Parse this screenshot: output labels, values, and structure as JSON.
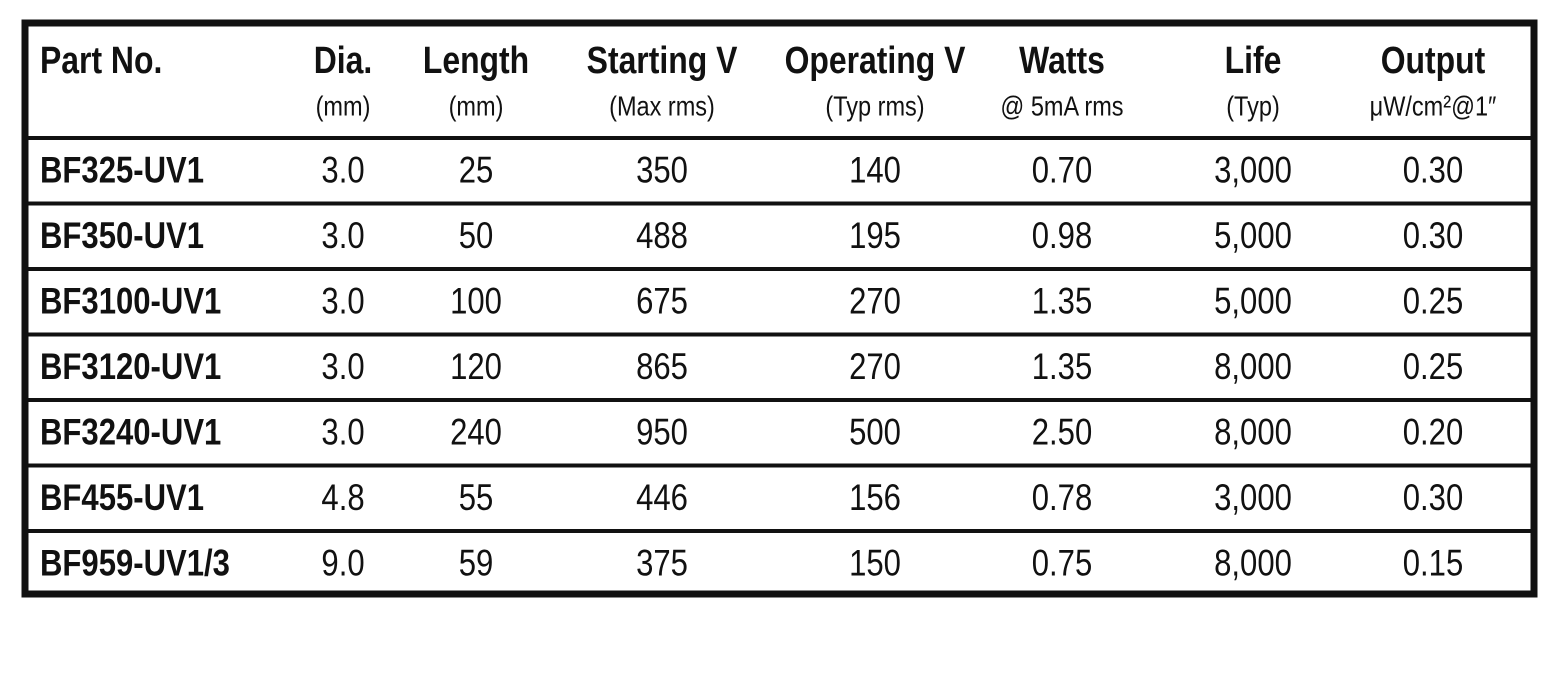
{
  "table": {
    "header": [
      {
        "title": "Part No."
      },
      {
        "title": "Dia.",
        "subtitle": "(mm)"
      },
      {
        "title": "Length",
        "subtitle": "(mm)"
      },
      {
        "title": "Starting V",
        "subtitle": "(Max rms)"
      },
      {
        "title": "Operating V",
        "subtitle": "(Typ rms)"
      },
      {
        "title": "Watts",
        "subtitle": "@ 5mA rms"
      },
      {
        "title": "Life",
        "subtitle": "(Typ)"
      },
      {
        "title": "Output",
        "subtitle": "μW/cm²@1″"
      }
    ],
    "rows": [
      [
        "BF325-UV1",
        "3.0",
        "25",
        "350",
        "140",
        "0.70",
        "3,000",
        "0.30"
      ],
      [
        "BF350-UV1",
        "3.0",
        "50",
        "488",
        "195",
        "0.98",
        "5,000",
        "0.30"
      ],
      [
        "BF3100-UV1",
        "3.0",
        "100",
        "675",
        "270",
        "1.35",
        "5,000",
        "0.25"
      ],
      [
        "BF3120-UV1",
        "3.0",
        "120",
        "865",
        "270",
        "1.35",
        "8,000",
        "0.25"
      ],
      [
        "BF3240-UV1",
        "3.0",
        "240",
        "950",
        "500",
        "2.50",
        "8,000",
        "0.20"
      ],
      [
        "BF455-UV1",
        "4.8",
        "55",
        "446",
        "156",
        "0.78",
        "3,000",
        "0.30"
      ],
      [
        "BF959-UV1/3",
        "9.0",
        "59",
        "375",
        "150",
        "0.75",
        "8,000",
        "0.15"
      ]
    ]
  }
}
